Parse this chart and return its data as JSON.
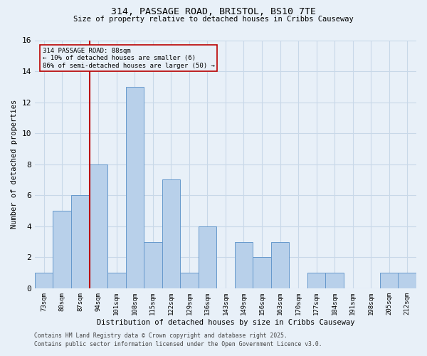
{
  "title_line1": "314, PASSAGE ROAD, BRISTOL, BS10 7TE",
  "title_line2": "Size of property relative to detached houses in Cribbs Causeway",
  "xlabel": "Distribution of detached houses by size in Cribbs Causeway",
  "ylabel": "Number of detached properties",
  "footer_line1": "Contains HM Land Registry data © Crown copyright and database right 2025.",
  "footer_line2": "Contains public sector information licensed under the Open Government Licence v3.0.",
  "annotation_line1": "314 PASSAGE ROAD: 88sqm",
  "annotation_line2": "← 10% of detached houses are smaller (6)",
  "annotation_line3": "86% of semi-detached houses are larger (50) →",
  "bar_labels": [
    "73sqm",
    "80sqm",
    "87sqm",
    "94sqm",
    "101sqm",
    "108sqm",
    "115sqm",
    "122sqm",
    "129sqm",
    "136sqm",
    "143sqm",
    "149sqm",
    "156sqm",
    "163sqm",
    "170sqm",
    "177sqm",
    "184sqm",
    "191sqm",
    "198sqm",
    "205sqm",
    "212sqm"
  ],
  "values": [
    1,
    5,
    6,
    8,
    1,
    13,
    3,
    7,
    1,
    4,
    0,
    3,
    2,
    3,
    0,
    1,
    1,
    0,
    0,
    1,
    1
  ],
  "bar_color": "#b8d0ea",
  "bar_edge_color": "#6699cc",
  "red_line_color": "#bb0000",
  "annotation_box_edge": "#bb0000",
  "grid_color": "#c8d8e8",
  "bg_color": "#e8f0f8",
  "ylim": [
    0,
    16
  ],
  "yticks": [
    0,
    2,
    4,
    6,
    8,
    10,
    12,
    14,
    16
  ],
  "red_line_x": 2.5
}
